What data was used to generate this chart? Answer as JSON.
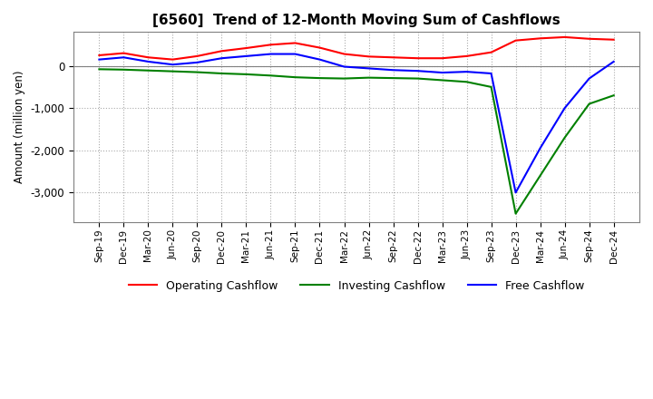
{
  "title": "[6560]  Trend of 12-Month Moving Sum of Cashflows",
  "ylabel": "Amount (million yen)",
  "x_labels": [
    "Sep-19",
    "Dec-19",
    "Mar-20",
    "Jun-20",
    "Sep-20",
    "Dec-20",
    "Mar-21",
    "Jun-21",
    "Sep-21",
    "Dec-21",
    "Mar-22",
    "Jun-22",
    "Sep-22",
    "Dec-22",
    "Mar-23",
    "Jun-23",
    "Sep-23",
    "Dec-23",
    "Mar-24",
    "Jun-24",
    "Sep-24",
    "Dec-24"
  ],
  "operating": [
    250,
    300,
    200,
    150,
    230,
    350,
    420,
    500,
    540,
    430,
    280,
    220,
    200,
    180,
    180,
    230,
    320,
    600,
    650,
    680,
    640,
    620
  ],
  "investing": [
    -80,
    -90,
    -110,
    -130,
    -150,
    -180,
    -200,
    -230,
    -270,
    -290,
    -300,
    -280,
    -290,
    -300,
    -340,
    -380,
    -500,
    -3500,
    -2600,
    -1700,
    -900,
    -700
  ],
  "free": [
    150,
    200,
    100,
    30,
    80,
    180,
    230,
    280,
    280,
    150,
    -20,
    -60,
    -100,
    -120,
    -160,
    -140,
    -180,
    -3000,
    -1950,
    -1000,
    -300,
    100
  ],
  "ylim": [
    -3700,
    800
  ],
  "yticks": [
    0,
    -1000,
    -2000,
    -3000
  ],
  "colors": {
    "operating": "#ff0000",
    "investing": "#008000",
    "free": "#0000ff"
  },
  "grid_color": "#aaaaaa",
  "background_color": "#ffffff"
}
